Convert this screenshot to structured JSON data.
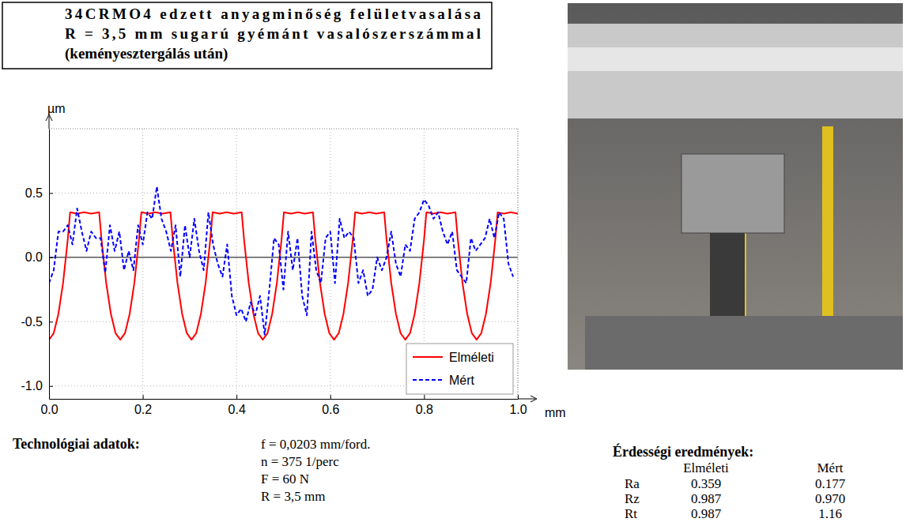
{
  "header": {
    "lines": [
      "34CRMO4 edzett anyagminőség felületvasalása",
      "R = 3,5 mm sugarú gyémánt vasalószerszámmal",
      "(keményesztergálás után)"
    ]
  },
  "chart_data": {
    "type": "line",
    "xlabel": "mm",
    "ylabel": "µm",
    "xlim": [
      0,
      1.0
    ],
    "ylim": [
      -1.1,
      1.0
    ],
    "xticks": [
      {
        "value": 0,
        "label": "0.0"
      },
      0.2,
      0.4,
      0.6,
      0.8,
      {
        "value": 1.0,
        "label": "1.0"
      }
    ],
    "yticks": [
      {
        "value": -1.0,
        "label": "-1.0"
      },
      -0.5,
      {
        "value": 0,
        "label": "0.0"
      },
      0.5
    ],
    "grid": true,
    "legend": "lower right",
    "series": [
      {
        "name": "Elméleti",
        "color": "#ff0000",
        "line_style": "solid",
        "x": [
          0,
          0.01,
          0.02,
          0.03,
          0.04,
          0.045,
          0.06,
          0.075,
          0.09,
          0.107,
          0.112,
          0.122,
          0.132,
          0.142,
          0.152,
          0.162,
          0.172,
          0.182,
          0.192,
          0.197,
          0.212,
          0.227,
          0.242,
          0.259,
          0.264,
          0.274,
          0.284,
          0.294,
          0.304,
          0.314,
          0.324,
          0.334,
          0.344,
          0.349,
          0.364,
          0.379,
          0.394,
          0.411,
          0.416,
          0.426,
          0.436,
          0.446,
          0.456,
          0.466,
          0.476,
          0.486,
          0.496,
          0.501,
          0.516,
          0.531,
          0.546,
          0.563,
          0.568,
          0.578,
          0.588,
          0.598,
          0.608,
          0.618,
          0.628,
          0.638,
          0.648,
          0.653,
          0.668,
          0.683,
          0.698,
          0.715,
          0.72,
          0.73,
          0.74,
          0.75,
          0.76,
          0.77,
          0.78,
          0.79,
          0.8,
          0.805,
          0.82,
          0.835,
          0.85,
          0.867,
          0.872,
          0.882,
          0.892,
          0.902,
          0.912,
          0.922,
          0.932,
          0.942,
          0.952,
          0.957,
          0.97,
          0.985,
          1.0
        ],
        "values": [
          -0.64,
          -0.59,
          -0.44,
          -0.2,
          0.14,
          0.35,
          0.34,
          0.35,
          0.34,
          0.35,
          0.14,
          -0.2,
          -0.44,
          -0.59,
          -0.64,
          -0.59,
          -0.44,
          -0.2,
          0.14,
          0.35,
          0.34,
          0.35,
          0.34,
          0.35,
          0.14,
          -0.2,
          -0.44,
          -0.59,
          -0.64,
          -0.59,
          -0.44,
          -0.2,
          0.14,
          0.35,
          0.34,
          0.35,
          0.34,
          0.35,
          0.14,
          -0.2,
          -0.44,
          -0.59,
          -0.64,
          -0.59,
          -0.44,
          -0.2,
          0.14,
          0.35,
          0.34,
          0.35,
          0.34,
          0.35,
          0.14,
          -0.2,
          -0.44,
          -0.59,
          -0.64,
          -0.59,
          -0.44,
          -0.2,
          0.14,
          0.35,
          0.34,
          0.35,
          0.34,
          0.35,
          0.14,
          -0.2,
          -0.44,
          -0.59,
          -0.64,
          -0.59,
          -0.44,
          -0.2,
          0.14,
          0.35,
          0.34,
          0.35,
          0.34,
          0.35,
          0.14,
          -0.2,
          -0.44,
          -0.59,
          -0.64,
          -0.59,
          -0.44,
          -0.2,
          0.14,
          0.35,
          0.34,
          0.35,
          0.34
        ]
      },
      {
        "name": "Mért",
        "color": "#0000ff",
        "line_style": "dashed",
        "x": [
          0,
          0.01,
          0.02,
          0.03,
          0.04,
          0.05,
          0.06,
          0.07,
          0.08,
          0.09,
          0.1,
          0.11,
          0.12,
          0.13,
          0.14,
          0.15,
          0.16,
          0.17,
          0.18,
          0.19,
          0.2,
          0.21,
          0.22,
          0.23,
          0.24,
          0.25,
          0.26,
          0.27,
          0.28,
          0.29,
          0.3,
          0.31,
          0.32,
          0.33,
          0.34,
          0.35,
          0.36,
          0.37,
          0.38,
          0.39,
          0.4,
          0.41,
          0.42,
          0.43,
          0.44,
          0.45,
          0.46,
          0.47,
          0.48,
          0.49,
          0.5,
          0.51,
          0.52,
          0.53,
          0.54,
          0.55,
          0.56,
          0.57,
          0.58,
          0.59,
          0.6,
          0.61,
          0.62,
          0.63,
          0.64,
          0.65,
          0.66,
          0.67,
          0.68,
          0.69,
          0.7,
          0.71,
          0.72,
          0.73,
          0.74,
          0.75,
          0.76,
          0.77,
          0.78,
          0.79,
          0.8,
          0.81,
          0.82,
          0.83,
          0.84,
          0.85,
          0.86,
          0.87,
          0.88,
          0.89,
          0.9,
          0.91,
          0.92,
          0.93,
          0.94,
          0.95,
          0.96,
          0.97,
          0.98,
          0.99
        ],
        "values": [
          -0.2,
          -0.1,
          0.2,
          0.2,
          0.25,
          0.1,
          0.38,
          0.2,
          0.05,
          0.2,
          0.15,
          0.15,
          -0.12,
          0.25,
          0.05,
          0.2,
          -0.1,
          0.05,
          -0.1,
          0.25,
          0.1,
          0.35,
          0.3,
          0.55,
          0.3,
          0.2,
          0.05,
          0.25,
          -0.15,
          0.25,
          0.0,
          0.3,
          0.05,
          -0.1,
          0.35,
          0.1,
          -0.05,
          -0.15,
          0.1,
          -0.3,
          -0.45,
          -0.4,
          -0.5,
          -0.35,
          -0.45,
          -0.3,
          -0.6,
          -0.25,
          0.15,
          0.1,
          -0.25,
          0.2,
          -0.1,
          0.15,
          -0.3,
          -0.45,
          0.2,
          -0.1,
          -0.2,
          0.15,
          0.2,
          -0.2,
          0.3,
          0.15,
          0.2,
          0.15,
          -0.2,
          -0.1,
          -0.3,
          -0.25,
          0.0,
          -0.1,
          0.0,
          0.2,
          -0.05,
          -0.15,
          0.1,
          0.05,
          0.3,
          0.35,
          0.45,
          0.4,
          0.3,
          0.35,
          0.2,
          0.1,
          0.2,
          -0.1,
          -0.15,
          -0.2,
          0.15,
          0.05,
          0.1,
          0.15,
          0.3,
          0.15,
          0.35,
          0.3,
          -0.05,
          -0.15
        ]
      }
    ]
  },
  "tech_data": {
    "title": "Technológiai adatok:",
    "lines": [
      "f = 0,0203 mm/ford.",
      "n = 375 1/perc",
      "F = 60 N",
      "R = 3,5 mm"
    ]
  },
  "results": {
    "title": "Érdességi eredmények:",
    "columns": [
      "Elméleti",
      "Mért"
    ],
    "rows": [
      {
        "label": "Ra",
        "values": [
          "0.359",
          "0.177"
        ]
      },
      {
        "label": "Rz",
        "values": [
          "0.987",
          "0.970"
        ]
      },
      {
        "label": "Rt",
        "values": [
          "0.987",
          "1.16"
        ]
      }
    ]
  }
}
